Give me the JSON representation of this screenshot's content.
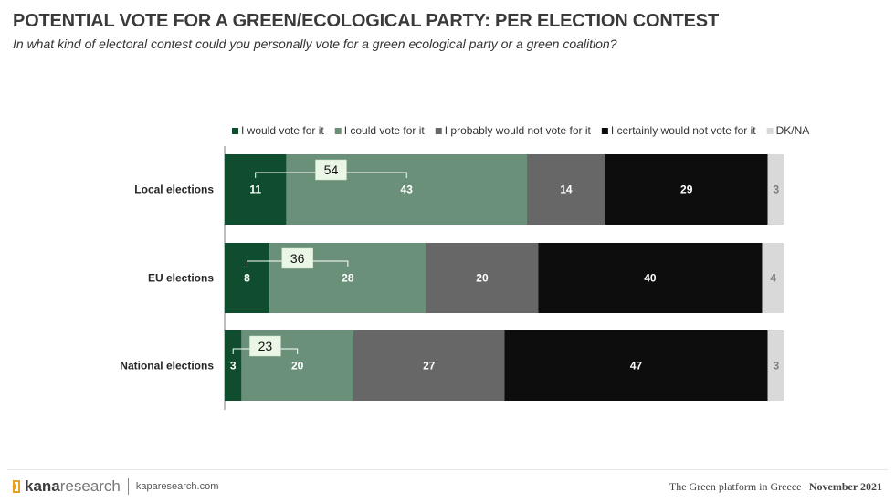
{
  "header": {
    "title": "POTENTIAL VOTE FOR A GREEN/ECOLOGICAL PARTY: PER ELECTION CONTEST",
    "subtitle": "In what kind of electoral contest could you personally vote for a green ecological party or a green coalition?"
  },
  "chart_data": {
    "type": "bar",
    "orientation": "horizontal",
    "stacked": true,
    "categories": [
      "Local elections",
      "EU elections",
      "National elections"
    ],
    "series": [
      {
        "name": "I would vote for it",
        "color": "#0f4d2e",
        "values": [
          11,
          8,
          3
        ]
      },
      {
        "name": "I could vote for it",
        "color": "#6b907a",
        "values": [
          43,
          28,
          20
        ]
      },
      {
        "name": "I probably would not vote for it",
        "color": "#676767",
        "values": [
          14,
          20,
          27
        ]
      },
      {
        "name": "I certainly would not vote for it",
        "color": "#0d0d0d",
        "values": [
          29,
          40,
          47
        ]
      },
      {
        "name": "DK/NA",
        "color": "#d9d9d9",
        "values": [
          3,
          4,
          3
        ]
      }
    ],
    "combined_labels": [
      54,
      36,
      23
    ],
    "legend_position": "top",
    "grid": false
  },
  "footer": {
    "brand_bold": "kana",
    "brand_light": "research",
    "website": "kaparesearch.com",
    "report": "The Green platform in Greece",
    "separator": "|",
    "date": "November 2021",
    "brand_color": "#e8a020"
  }
}
